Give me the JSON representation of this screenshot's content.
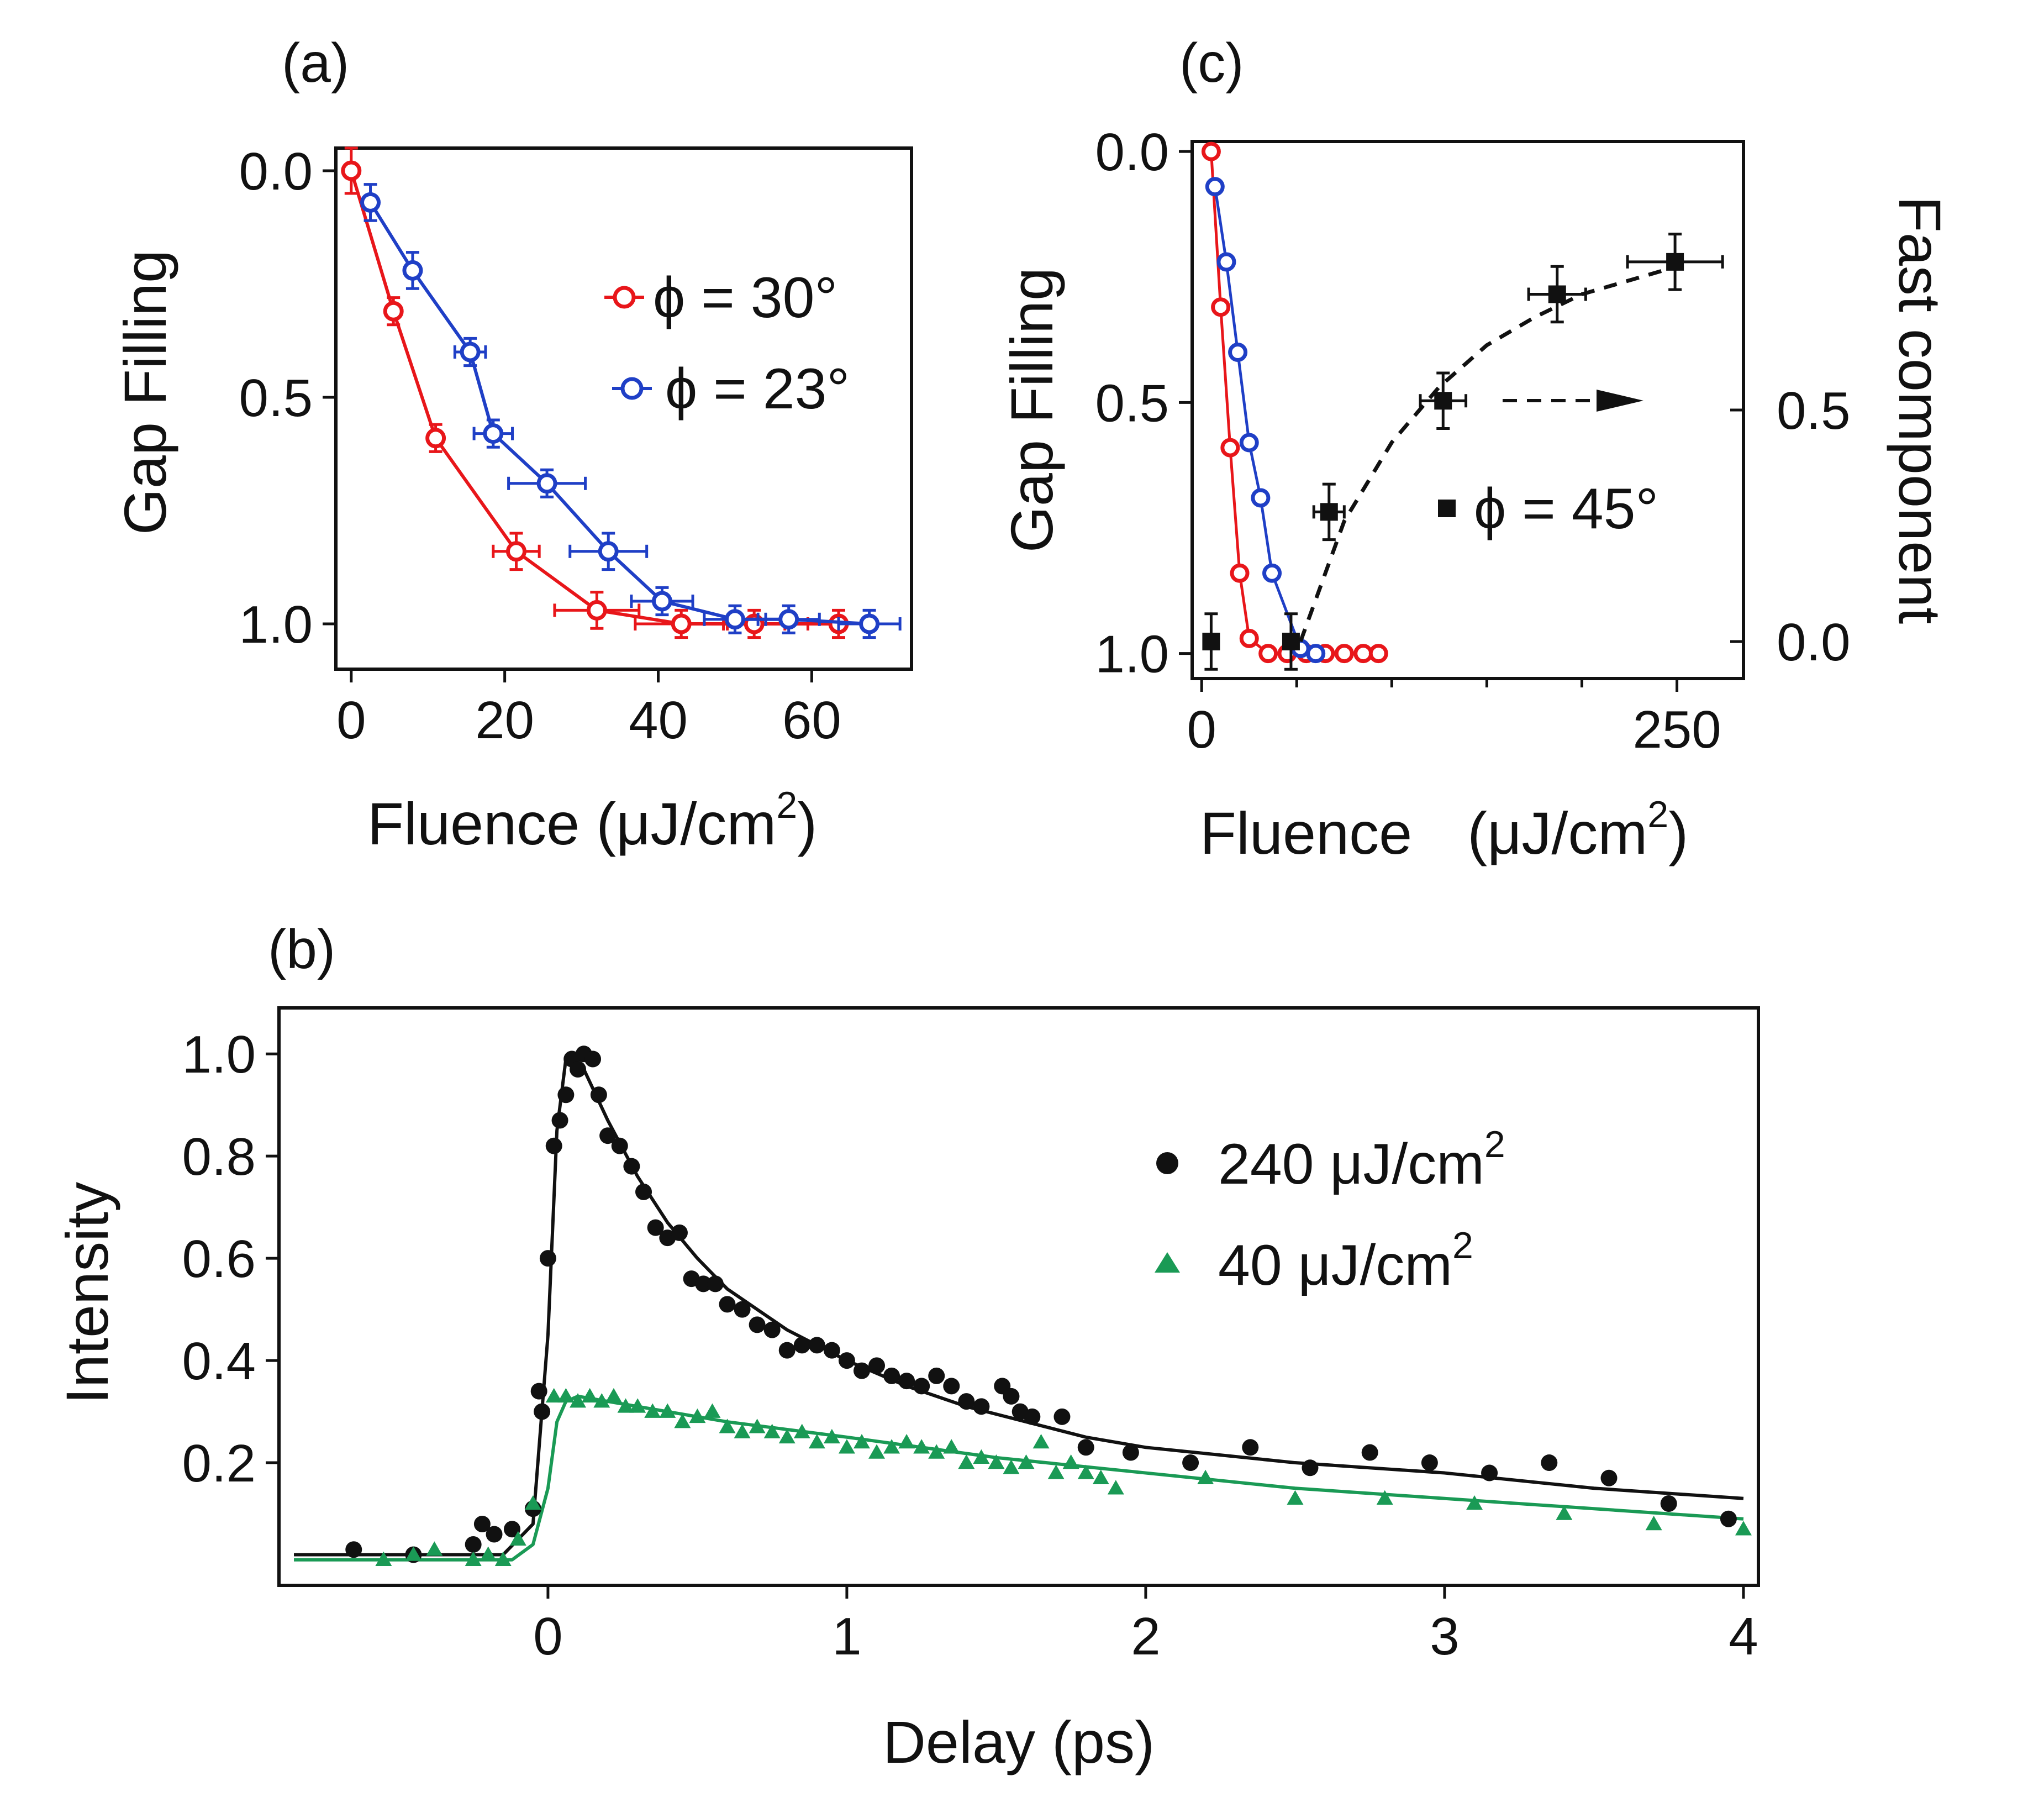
{
  "chart_data": [
    {
      "id": "a",
      "type": "line",
      "panel_label": "(a)",
      "xlabel": "Fluence (μJ/cm",
      "xlabel_sup": "2",
      "xlabel_tail": ")",
      "ylabel": "Gap Filling",
      "xlim": [
        -2,
        73
      ],
      "ylim": [
        1.1,
        -0.05
      ],
      "xticks": [
        0,
        20,
        40,
        60
      ],
      "yticks": [
        0.0,
        0.5,
        1.0
      ],
      "ytick_labels": [
        "0.0",
        "0.5",
        "1.0"
      ],
      "legend_position": "center-right",
      "series": [
        {
          "name": "ϕ = 30°",
          "color": "#e8161a",
          "marker": "open-circle",
          "x": [
            0,
            5.5,
            11,
            21.5,
            32,
            43,
            52.5,
            63.5
          ],
          "y": [
            0.0,
            0.31,
            0.59,
            0.84,
            0.97,
            1.0,
            1.0,
            1.0
          ],
          "xerr": [
            0,
            0,
            0,
            3,
            5.5,
            6,
            4,
            4
          ],
          "yerr": [
            0.05,
            0.03,
            0.03,
            0.04,
            0.04,
            0.03,
            0.03,
            0.03
          ]
        },
        {
          "name": "ϕ = 23°",
          "color": "#1f3fc6",
          "marker": "open-circle",
          "x": [
            2.5,
            8,
            15.5,
            18.5,
            25.5,
            33.5,
            40.5,
            50,
            57,
            67.5
          ],
          "y": [
            0.07,
            0.22,
            0.4,
            0.58,
            0.69,
            0.84,
            0.95,
            0.99,
            0.99,
            1.0
          ],
          "xerr": [
            0,
            0,
            2,
            2.5,
            5,
            5,
            4,
            4,
            4,
            4
          ],
          "yerr": [
            0.04,
            0.04,
            0.03,
            0.03,
            0.03,
            0.04,
            0.03,
            0.03,
            0.03,
            0.03
          ]
        }
      ]
    },
    {
      "id": "c",
      "type": "line",
      "panel_label": "(c)",
      "xlabel": "Fluence",
      "xlabel_units": "(μJ/cm",
      "xlabel_sup": "2",
      "xlabel_tail": ")",
      "ylabel": "Gap Filling",
      "y2label": "Fast component",
      "xlim": [
        -5,
        285
      ],
      "ylim": [
        1.05,
        -0.02
      ],
      "y2lim": [
        -0.08,
        1.08
      ],
      "xticks": [
        0,
        250
      ],
      "xticks_minor": [
        50,
        100,
        150,
        200
      ],
      "yticks": [
        0.0,
        0.5,
        1.0
      ],
      "ytick_labels": [
        "0.0",
        "0.5",
        "1.0"
      ],
      "y2ticks": [
        0.0,
        0.5
      ],
      "y2tick_labels": [
        "0.0",
        "0.5"
      ],
      "series": [
        {
          "name": "ϕ = 30°",
          "color": "#e8161a",
          "marker": "open-circle",
          "axis": "left",
          "x": [
            5,
            10,
            15,
            20,
            25,
            35,
            45,
            55,
            65,
            75,
            85,
            93
          ],
          "y": [
            0.0,
            0.31,
            0.59,
            0.84,
            0.97,
            1.0,
            1.0,
            1.0,
            1.0,
            1.0,
            1.0,
            1.0
          ]
        },
        {
          "name": "ϕ = 23°",
          "color": "#1f3fc6",
          "marker": "open-circle",
          "axis": "left",
          "x": [
            7,
            13,
            19,
            25,
            31,
            37,
            52,
            60
          ],
          "y": [
            0.07,
            0.22,
            0.4,
            0.58,
            0.69,
            0.84,
            0.99,
            1.0
          ]
        },
        {
          "name": "ϕ = 45°",
          "color": "#111111",
          "marker": "filled-square",
          "axis": "right",
          "x": [
            5,
            47,
            67,
            127,
            187,
            249
          ],
          "y": [
            0.0,
            0.0,
            0.28,
            0.52,
            0.75,
            0.82
          ],
          "xerr": [
            0,
            0,
            8,
            12,
            15,
            25
          ],
          "yerr": [
            0.06,
            0.06,
            0.06,
            0.06,
            0.06,
            0.06
          ],
          "fit": {
            "style": "dashed",
            "x": [
              52,
              75,
              100,
              125,
              150,
              175,
              200,
              225,
              250
            ],
            "y": [
              0.0,
              0.26,
              0.43,
              0.55,
              0.64,
              0.7,
              0.75,
              0.78,
              0.81
            ]
          }
        }
      ],
      "annotation": "dashed arrow pointing right toward Fast component axis",
      "legend_entry": "ϕ = 45°"
    },
    {
      "id": "b",
      "type": "scatter",
      "panel_label": "(b)",
      "xlabel": "Delay (ps)",
      "ylabel": "Intensity",
      "xlim": [
        -0.9,
        4.05
      ],
      "ylim": [
        -0.04,
        1.09
      ],
      "xticks": [
        0,
        1,
        2,
        3,
        4
      ],
      "xtick_labels": [
        "0",
        "1",
        "2",
        "3",
        "4"
      ],
      "yticks": [
        0.2,
        0.4,
        0.6,
        0.8,
        1.0
      ],
      "ytick_labels": [
        "0.2",
        "0.4",
        "0.6",
        "0.8",
        "1.0"
      ],
      "legend_position": "top-right",
      "series": [
        {
          "name": "240 μJ/cm",
          "name_sup": "2",
          "color": "#111111",
          "marker": "filled-circle",
          "x": [
            -0.65,
            -0.45,
            -0.25,
            -0.22,
            -0.18,
            -0.12,
            -0.05,
            -0.03,
            -0.02,
            0.0,
            0.02,
            0.04,
            0.06,
            0.08,
            0.1,
            0.12,
            0.15,
            0.17,
            0.2,
            0.24,
            0.28,
            0.32,
            0.36,
            0.4,
            0.44,
            0.48,
            0.52,
            0.56,
            0.6,
            0.65,
            0.7,
            0.75,
            0.8,
            0.85,
            0.9,
            0.95,
            1.0,
            1.05,
            1.1,
            1.15,
            1.2,
            1.25,
            1.3,
            1.35,
            1.4,
            1.45,
            1.52,
            1.55,
            1.58,
            1.62,
            1.72,
            1.8,
            1.95,
            2.15,
            2.35,
            2.55,
            2.75,
            2.95,
            3.15,
            3.35,
            3.55,
            3.75,
            3.95
          ],
          "y": [
            0.03,
            0.02,
            0.04,
            0.08,
            0.06,
            0.07,
            0.11,
            0.34,
            0.3,
            0.6,
            0.82,
            0.87,
            0.92,
            0.99,
            0.97,
            1.0,
            0.99,
            0.92,
            0.84,
            0.82,
            0.78,
            0.73,
            0.66,
            0.64,
            0.65,
            0.56,
            0.55,
            0.55,
            0.51,
            0.5,
            0.47,
            0.46,
            0.42,
            0.43,
            0.43,
            0.42,
            0.4,
            0.38,
            0.39,
            0.37,
            0.36,
            0.35,
            0.37,
            0.35,
            0.32,
            0.31,
            0.35,
            0.33,
            0.3,
            0.29,
            0.29,
            0.23,
            0.22,
            0.2,
            0.23,
            0.19,
            0.22,
            0.2,
            0.18,
            0.2,
            0.17,
            0.12,
            0.09
          ]
        },
        {
          "name": "40 μJ/cm",
          "name_sup": "2",
          "color": "#1a9a55",
          "marker": "filled-triangle",
          "x": [
            -0.55,
            -0.45,
            -0.38,
            -0.25,
            -0.2,
            -0.15,
            -0.1,
            -0.05,
            0.02,
            0.06,
            0.1,
            0.14,
            0.18,
            0.22,
            0.26,
            0.3,
            0.35,
            0.4,
            0.45,
            0.5,
            0.55,
            0.6,
            0.65,
            0.7,
            0.75,
            0.8,
            0.85,
            0.9,
            0.95,
            1.0,
            1.05,
            1.1,
            1.15,
            1.2,
            1.25,
            1.3,
            1.35,
            1.4,
            1.45,
            1.5,
            1.55,
            1.6,
            1.65,
            1.7,
            1.75,
            1.8,
            1.85,
            1.9,
            2.2,
            2.5,
            2.8,
            3.1,
            3.4,
            3.7,
            4.0
          ],
          "y": [
            0.01,
            0.02,
            0.03,
            0.01,
            0.02,
            0.01,
            0.05,
            0.12,
            0.33,
            0.33,
            0.32,
            0.33,
            0.32,
            0.33,
            0.31,
            0.31,
            0.3,
            0.3,
            0.28,
            0.29,
            0.3,
            0.27,
            0.26,
            0.27,
            0.26,
            0.25,
            0.26,
            0.24,
            0.25,
            0.23,
            0.24,
            0.22,
            0.23,
            0.24,
            0.23,
            0.22,
            0.23,
            0.2,
            0.21,
            0.2,
            0.19,
            0.2,
            0.24,
            0.18,
            0.2,
            0.18,
            0.17,
            0.15,
            0.17,
            0.13,
            0.13,
            0.12,
            0.1,
            0.08,
            0.07
          ]
        }
      ],
      "fits": [
        {
          "color": "#111111",
          "x": [
            -0.85,
            -0.15,
            -0.05,
            0.0,
            0.03,
            0.06,
            0.08,
            0.12,
            0.2,
            0.3,
            0.4,
            0.5,
            0.6,
            0.8,
            1.0,
            1.2,
            1.4,
            1.6,
            1.8,
            2.0,
            2.5,
            3.0,
            3.5,
            4.0
          ],
          "y": [
            0.02,
            0.02,
            0.08,
            0.45,
            0.85,
            0.99,
            1.0,
            0.97,
            0.87,
            0.76,
            0.67,
            0.6,
            0.54,
            0.46,
            0.4,
            0.35,
            0.31,
            0.28,
            0.25,
            0.23,
            0.2,
            0.18,
            0.15,
            0.13
          ]
        },
        {
          "color": "#1a9a55",
          "x": [
            -0.85,
            -0.12,
            -0.05,
            0.0,
            0.03,
            0.06,
            0.1,
            0.3,
            0.6,
            1.0,
            1.5,
            2.0,
            2.5,
            3.0,
            3.5,
            4.0
          ],
          "y": [
            0.01,
            0.01,
            0.04,
            0.15,
            0.28,
            0.32,
            0.33,
            0.31,
            0.28,
            0.25,
            0.21,
            0.18,
            0.15,
            0.13,
            0.11,
            0.09
          ]
        }
      ]
    }
  ]
}
